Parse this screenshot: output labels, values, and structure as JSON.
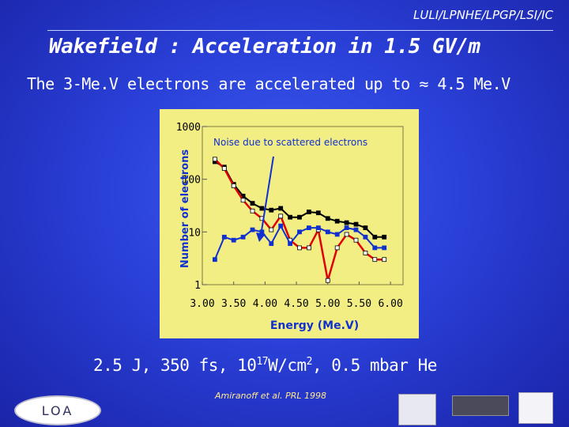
{
  "header": {
    "org": "LULI/LPNHE/LPGP/LSI/IC",
    "title": "Wakefield : Acceleration in 1.5 GV/m",
    "subtitle": "The 3-Me.V electrons are accelerated up to ≈ 4.5 Me.V"
  },
  "conditions": {
    "part1": "2.5 J, 350 fs, 10",
    "exp": "17",
    "part2": "W/cm",
    "exp2": "2",
    "part3": ", 0.5 mbar He"
  },
  "reference": "Amiranoff et al. PRL 1998",
  "logos": {
    "loa": "LOA"
  },
  "colors": {
    "background": "#2a40d8",
    "plot_bg": "#f2ee84",
    "series_black": "#000000",
    "series_red": "#e00000",
    "series_blue": "#1030d0"
  },
  "chart_data": {
    "type": "line",
    "xlabel": "Energy (Me.V)",
    "ylabel": "Number of electrons",
    "x_ticks": [
      "3.00",
      "3.50",
      "4.00",
      "4.50",
      "5.00",
      "5.50",
      "6.00"
    ],
    "y_ticks": [
      "1",
      "10",
      "100",
      "1000"
    ],
    "xlim": [
      3.0,
      6.2
    ],
    "ylim": [
      1,
      1000
    ],
    "y_scale": "log",
    "grid": false,
    "annotation": "Noise due to scattered electrons",
    "series": [
      {
        "color": "black",
        "x": [
          3.2,
          3.35,
          3.5,
          3.65,
          3.8,
          3.95,
          4.1,
          4.25,
          4.4,
          4.55,
          4.7,
          4.85,
          5.0,
          5.15,
          5.3,
          5.45,
          5.6,
          5.75,
          5.9
        ],
        "values": [
          215,
          170,
          80,
          48,
          35,
          28,
          26,
          28,
          19,
          19,
          24,
          23,
          18,
          16,
          15,
          14,
          12,
          8,
          8
        ]
      },
      {
        "color": "red",
        "x": [
          3.2,
          3.35,
          3.5,
          3.65,
          3.8,
          3.95,
          4.1,
          4.25,
          4.4,
          4.55,
          4.7,
          4.85,
          5.0,
          5.15,
          5.3,
          5.45,
          5.6,
          5.75,
          5.9
        ],
        "values": [
          240,
          160,
          75,
          40,
          25,
          18,
          11,
          20,
          7,
          5,
          5,
          11,
          1.2,
          5,
          9,
          7,
          4,
          3,
          3
        ]
      },
      {
        "color": "blue",
        "x": [
          3.2,
          3.35,
          3.5,
          3.65,
          3.8,
          3.95,
          4.1,
          4.25,
          4.4,
          4.55,
          4.7,
          4.85,
          5.0,
          5.15,
          5.3,
          5.45,
          5.6,
          5.75,
          5.9
        ],
        "values": [
          3,
          8,
          7,
          8,
          11,
          10,
          6,
          13,
          6,
          10,
          12,
          12,
          10,
          9,
          12,
          11,
          8,
          5,
          5
        ]
      }
    ]
  }
}
